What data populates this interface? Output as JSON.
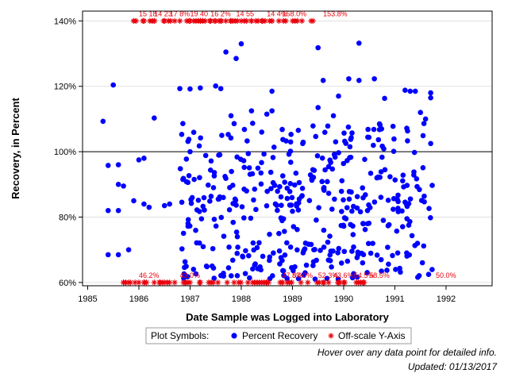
{
  "chart_data": {
    "type": "scatter",
    "title": "",
    "xlabel": "Date Sample was Logged into Laboratory",
    "ylabel": "Recovery, in Percent",
    "xlim": [
      1984.9,
      1992.9
    ],
    "ylim": [
      59,
      143
    ],
    "x_ticks": [
      1985,
      1986,
      1987,
      1988,
      1989,
      1990,
      1991,
      1992
    ],
    "y_ticks": [
      60,
      80,
      100,
      120,
      140
    ],
    "y_tick_labels": [
      "60%",
      "80%",
      "100%",
      "120%",
      "140%"
    ],
    "reference_line": 100,
    "grid": "horizontal",
    "legend": {
      "title": "Plot Symbols:",
      "entries": [
        {
          "label": "Percent Recovery",
          "symbol": "dot",
          "color": "#0000ff"
        },
        {
          "label": "Off-scale Y-Axis",
          "symbol": "asterisk",
          "color": "#e8000b"
        }
      ],
      "position": "bottom-center"
    },
    "colors": {
      "recovery": "#0000ff",
      "offscale": "#e8000b",
      "reference": "#000000",
      "grid": "#e0e0e0"
    },
    "percent_recovery_seed": [
      [
        1985.3,
        109.3
      ],
      [
        1985.4,
        95.8
      ],
      [
        1985.4,
        82.0
      ],
      [
        1985.4,
        68.5
      ],
      [
        1985.5,
        120.4
      ],
      [
        1985.6,
        96.0
      ],
      [
        1985.6,
        90.0
      ],
      [
        1985.6,
        82.0
      ],
      [
        1985.6,
        68.5
      ],
      [
        1985.7,
        89.5
      ],
      [
        1985.8,
        70.0
      ],
      [
        1985.9,
        85.0
      ],
      [
        1986.0,
        97.5
      ],
      [
        1986.1,
        98.0
      ],
      [
        1986.1,
        84.0
      ],
      [
        1986.2,
        83.0
      ],
      [
        1986.3,
        110.3
      ],
      [
        1986.5,
        83.5
      ],
      [
        1986.6,
        84.0
      ],
      [
        1986.8,
        119.3
      ],
      [
        1987.0,
        119.2
      ],
      [
        1987.0,
        100.0
      ],
      [
        1987.2,
        119.5
      ],
      [
        1987.5,
        120.1
      ],
      [
        1987.6,
        119.3
      ],
      [
        1987.7,
        130.5
      ],
      [
        1987.8,
        111.0
      ],
      [
        1987.9,
        128.5
      ],
      [
        1988.0,
        133.0
      ],
      [
        1988.2,
        112.5
      ],
      [
        1988.4,
        106.0
      ],
      [
        1988.5,
        111.5
      ],
      [
        1988.6,
        118.5
      ],
      [
        1988.6,
        112.5
      ],
      [
        1988.8,
        106.8
      ],
      [
        1989.2,
        102.5
      ],
      [
        1989.5,
        131.8
      ],
      [
        1989.5,
        113.5
      ],
      [
        1989.6,
        121.8
      ],
      [
        1989.8,
        111.0
      ],
      [
        1989.9,
        117.0
      ],
      [
        1990.1,
        122.3
      ],
      [
        1990.3,
        121.8
      ],
      [
        1990.3,
        133.2
      ],
      [
        1990.6,
        122.3
      ],
      [
        1990.7,
        108.5
      ],
      [
        1990.8,
        116.3
      ],
      [
        1991.2,
        118.8
      ],
      [
        1991.3,
        118.5
      ],
      [
        1991.4,
        118.5
      ],
      [
        1991.5,
        112.0
      ],
      [
        1991.6,
        110.0
      ],
      [
        1991.7,
        118.0
      ],
      [
        1991.7,
        116.5
      ],
      [
        1991.7,
        102.5
      ]
    ],
    "percent_recovery_fill": {
      "x_range": [
        1986.8,
        1991.75
      ],
      "count": 430,
      "bands": [
        {
          "center": 95,
          "spread": 4
        },
        {
          "center": 88,
          "spread": 3
        },
        {
          "center": 84,
          "spread": 2.5
        },
        {
          "center": 77,
          "spread": 3
        },
        {
          "center": 70,
          "spread": 2.5
        },
        {
          "center": 64,
          "spread": 3
        },
        {
          "center": 104,
          "spread": 5
        }
      ]
    },
    "offscale_high": {
      "y_position": 140,
      "x_values": [
        1985.9,
        1986.1,
        1986.3,
        1986.5,
        1986.7,
        1986.8,
        1987.0,
        1987.2,
        1987.4,
        1987.5,
        1987.6,
        1987.8,
        1988.0,
        1988.2,
        1988.4,
        1988.6,
        1989.4
      ],
      "labels": [
        {
          "x": 1986.0,
          "text": "15 18"
        },
        {
          "x": 1986.3,
          "text": "14 23"
        },
        {
          "x": 1986.6,
          "text": "17 8%"
        },
        {
          "x": 1987.0,
          "text": "19 40"
        },
        {
          "x": 1987.4,
          "text": "16 2%"
        },
        {
          "x": 1987.9,
          "text": "14 55"
        },
        {
          "x": 1988.5,
          "text": "14 4%"
        },
        {
          "x": 1988.8,
          "text": "158.0%"
        },
        {
          "x": 1989.6,
          "text": "153.8%"
        }
      ]
    },
    "offscale_low": {
      "y_position": 60,
      "x_values": [
        1985.7,
        1985.8,
        1986.0,
        1986.1,
        1986.3,
        1986.4,
        1986.5,
        1986.7,
        1986.9,
        1987.0,
        1987.2,
        1988.5,
        1988.8,
        1989.3,
        1989.6,
        1989.9,
        1990.0,
        1990.4
      ],
      "labels": [
        {
          "x": 1986.0,
          "text": "46.2%"
        },
        {
          "x": 1986.8,
          "text": "43.0%"
        },
        {
          "x": 1988.8,
          "text": "47.8%"
        },
        {
          "x": 1989.0,
          "text": "57.0%"
        },
        {
          "x": 1989.5,
          "text": "52.3%"
        },
        {
          "x": 1989.8,
          "text": "43.6%"
        },
        {
          "x": 1990.2,
          "text": "54.5%"
        },
        {
          "x": 1990.5,
          "text": "58.5%"
        },
        {
          "x": 1991.8,
          "text": "50.0%"
        }
      ]
    }
  },
  "notes": {
    "hover": "Hover over any data point for detailed info.",
    "updated": "Updated: 01/13/2017"
  }
}
